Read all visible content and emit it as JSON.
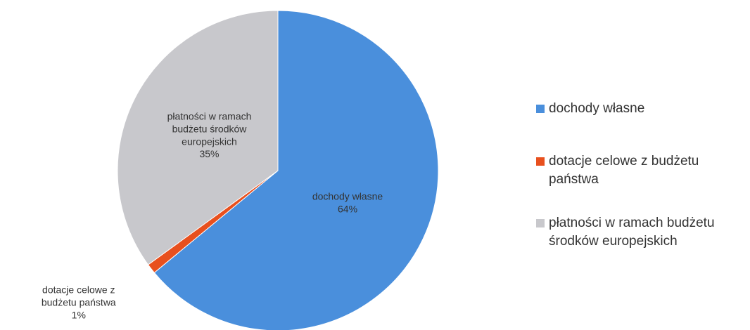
{
  "chart_data": {
    "type": "pie",
    "categories": [
      "dochody własne",
      "dotacje celowe z budżetu państwa",
      "płatności w ramach budżetu środków europejskich"
    ],
    "values": [
      64,
      1,
      35
    ],
    "value_labels": [
      "64%",
      "1%",
      "35%"
    ],
    "colors": [
      "#4a8fdc",
      "#e8501e",
      "#c8c8cc"
    ],
    "legend": "right"
  }
}
